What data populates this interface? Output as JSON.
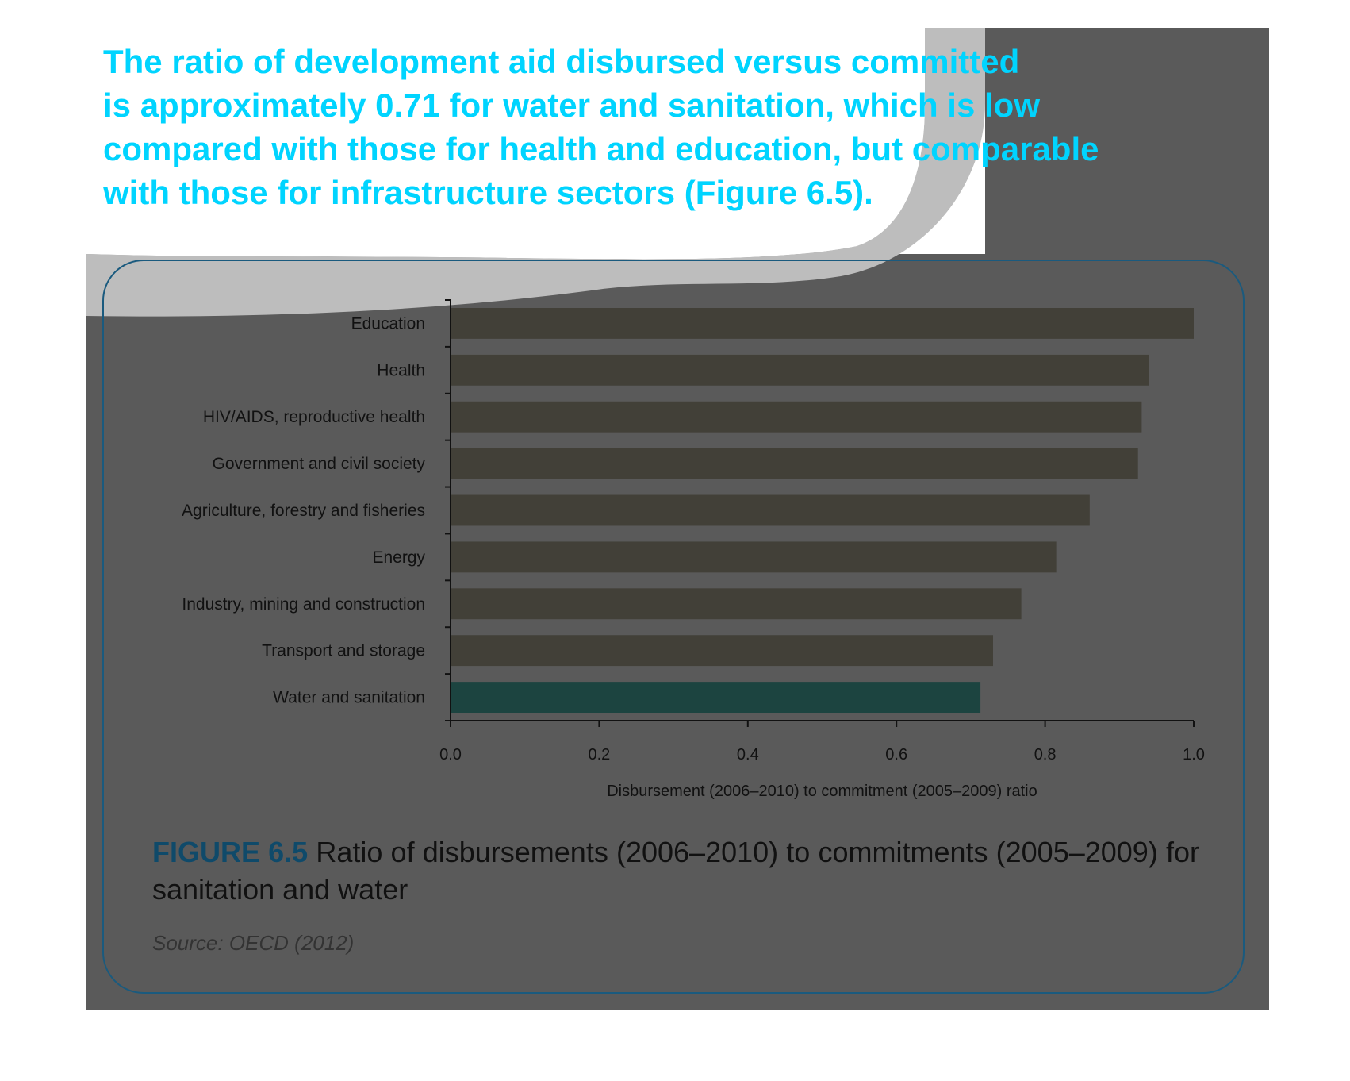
{
  "intro": {
    "lines": [
      "The ratio of development aid disbursed versus committed",
      "is approximately 0.71 for water and sanitation, which is low",
      "compared with those for health and education, but comparable",
      "with those for infrastructure sectors (Figure 6.5)."
    ],
    "color": "#00d4ff"
  },
  "chart_data": {
    "type": "bar",
    "orientation": "horizontal",
    "categories": [
      "Education",
      "Health",
      "HIV/AIDS, reproductive health",
      "Government and civil society",
      "Agriculture, forestry and fisheries",
      "Energy",
      "Industry, mining and construction",
      "Transport and storage",
      "Water and sanitation"
    ],
    "values": [
      1.0,
      0.94,
      0.93,
      0.925,
      0.86,
      0.815,
      0.768,
      0.73,
      0.713
    ],
    "highlight_index": 8,
    "xlabel": "Disbursement (2006–2010) to commitment (2005–2009) ratio",
    "ylabel": "",
    "xlim": [
      0,
      1.0
    ],
    "xticks": [
      0.0,
      0.2,
      0.4,
      0.6,
      0.8,
      1.0
    ],
    "xtick_labels": [
      "0.0",
      "0.2",
      "0.4",
      "0.6",
      "0.8",
      "1.0"
    ],
    "grid": false,
    "bar_color": "#424038",
    "highlight_color": "#1c4440"
  },
  "caption": {
    "label": "FIGURE 6.5",
    "text": "Ratio of disbursements (2006–2010) to commitments (2005–2009) for sanitation and water",
    "label_color": "#0f4a6a"
  },
  "source": "Source: OECD (2012)",
  "colors": {
    "panel": "#5a5a5a",
    "swoosh": "#bdbdbd",
    "frame": "#1a5a7e"
  }
}
